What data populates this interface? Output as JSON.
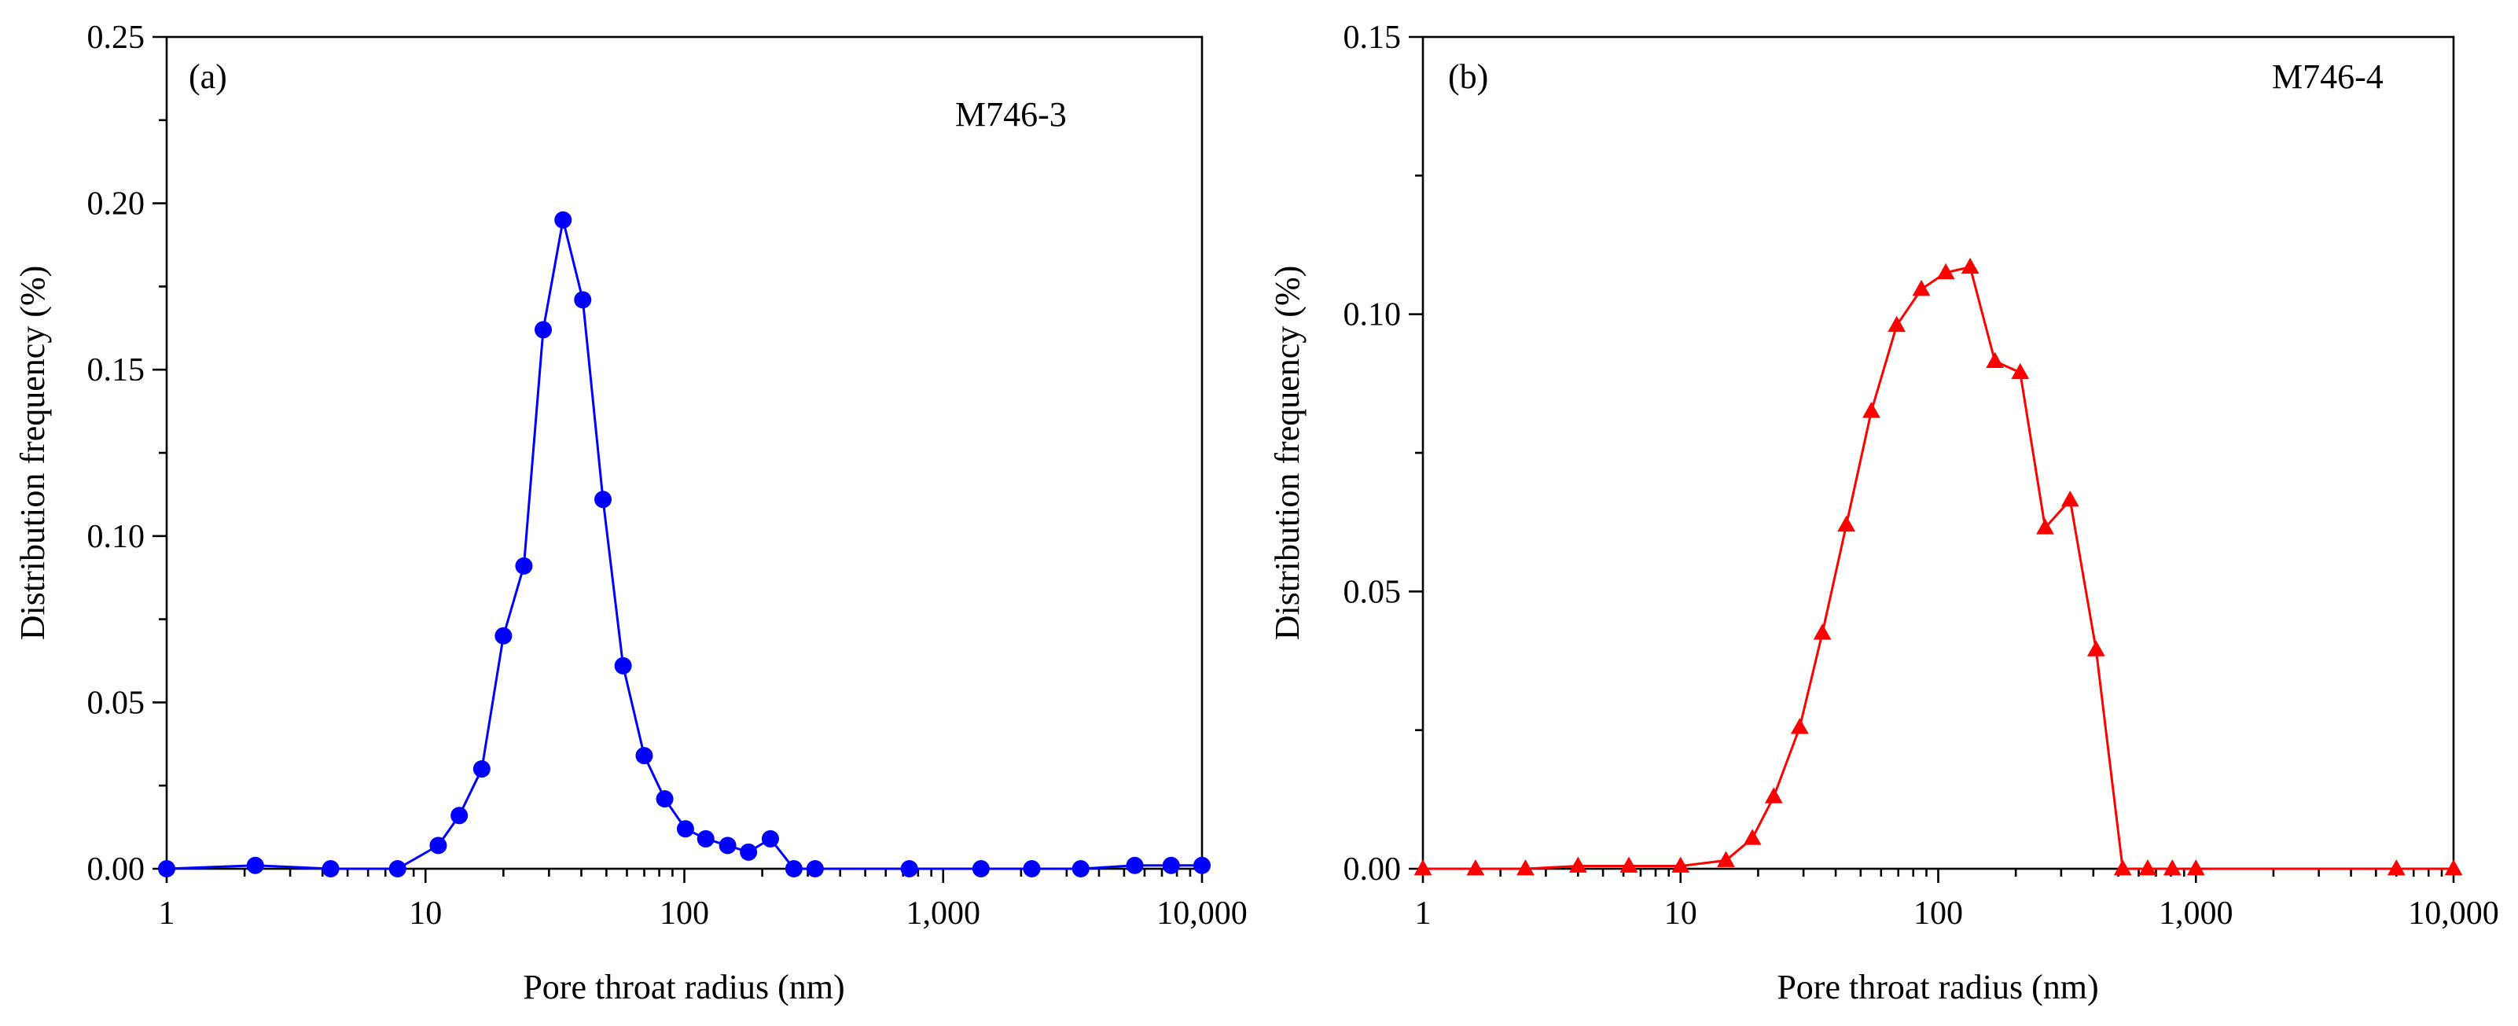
{
  "chart_data": [
    {
      "type": "line",
      "panel_label": "(a)",
      "sample": "M746-3",
      "xlabel": "Pore throat radius (nm)",
      "ylabel": "Distribution frequency (%)",
      "xscale": "log",
      "xlim": [
        1,
        10000
      ],
      "ylim": [
        0,
        0.25
      ],
      "xticks": [
        "1",
        "10",
        "100",
        "1,000",
        "10,000"
      ],
      "yticks": [
        "0.00",
        "0.05",
        "0.10",
        "0.15",
        "0.20",
        "0.25"
      ],
      "marker": "circle",
      "color": "#0000ff",
      "series": [
        {
          "x": [
            1,
            2.2,
            4.3,
            7.8,
            11.2,
            13.5,
            16.5,
            20,
            24,
            28.5,
            34,
            40.5,
            48.5,
            58,
            70,
            84,
            101,
            121,
            147,
            177,
            215,
            265,
            320,
            740,
            1400,
            2200,
            3400,
            5500,
            7600,
            10000
          ],
          "y": [
            0.0,
            0.001,
            0.0,
            0.0,
            0.007,
            0.016,
            0.03,
            0.07,
            0.091,
            0.162,
            0.195,
            0.171,
            0.111,
            0.061,
            0.034,
            0.021,
            0.012,
            0.009,
            0.007,
            0.005,
            0.009,
            0.0,
            0.0,
            0.0,
            0.0,
            0.0,
            0.0,
            0.001,
            0.001,
            0.001
          ]
        }
      ]
    },
    {
      "type": "line",
      "panel_label": "(b)",
      "sample": "M746-4",
      "xlabel": "Pore throat radius (nm)",
      "ylabel": "Distribution frequency (%)",
      "xscale": "log",
      "xlim": [
        1,
        10000
      ],
      "ylim": [
        0,
        0.15
      ],
      "xticks": [
        "1",
        "10",
        "100",
        "1,000",
        "10,000"
      ],
      "yticks": [
        "0.00",
        "0.05",
        "0.10",
        "0.15"
      ],
      "marker": "triangle",
      "color": "#ff0000",
      "series": [
        {
          "x": [
            1,
            1.6,
            2.5,
            4,
            6.3,
            10,
            15,
            19,
            23,
            29,
            35.5,
            44,
            55,
            69,
            86,
            107,
            133,
            166,
            208,
            260,
            325,
            410,
            520,
            650,
            810,
            1000,
            6000,
            10000
          ],
          "y": [
            0.0,
            0.0,
            0.0,
            0.0005,
            0.0005,
            0.0005,
            0.0015,
            0.0055,
            0.013,
            0.0255,
            0.0425,
            0.062,
            0.0825,
            0.098,
            0.1045,
            0.1075,
            0.1085,
            0.0915,
            0.0895,
            0.0615,
            0.0665,
            0.0395,
            0.0,
            0.0,
            0.0,
            0.0,
            0.0,
            0.0
          ]
        }
      ]
    }
  ]
}
